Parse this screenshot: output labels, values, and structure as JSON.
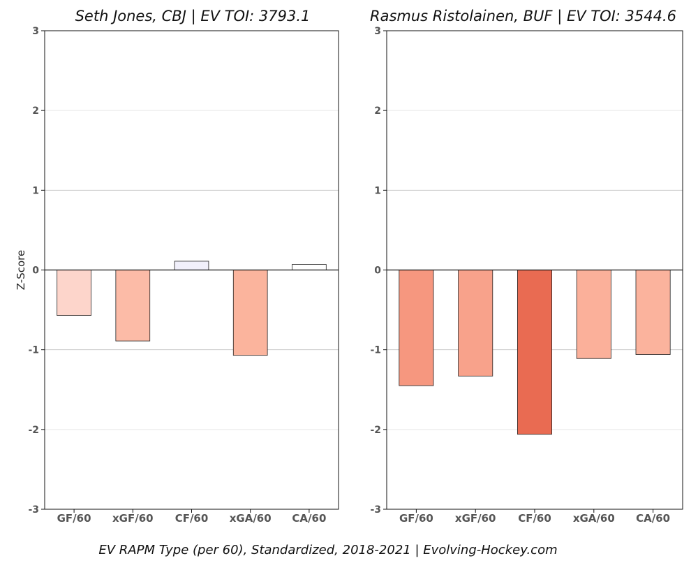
{
  "footer": "EV RAPM Type (per 60), Standardized, 2018-2021    |    Evolving-Hockey.com",
  "chart_data": [
    {
      "type": "bar",
      "title": "Seth Jones, CBJ  |  EV TOI: 3793.1",
      "ylabel": "Z-Score",
      "ylim": [
        -3,
        3
      ],
      "yticks": [
        -3,
        -2,
        -1,
        0,
        1,
        2,
        3
      ],
      "grid": true,
      "categories": [
        "GF/60",
        "xGF/60",
        "CF/60",
        "xGA/60",
        "CA/60"
      ],
      "values": [
        -0.57,
        -0.89,
        0.11,
        -1.07,
        0.07
      ],
      "colors": [
        "#fdd5cb",
        "#fcbba7",
        "#f1f0fb",
        "#fbb49d",
        "#ffffff"
      ]
    },
    {
      "type": "bar",
      "title": "Rasmus Ristolainen, BUF  |  EV TOI: 3544.6",
      "ylabel": "",
      "ylim": [
        -3,
        3
      ],
      "yticks": [
        -3,
        -2,
        -1,
        0,
        1,
        2,
        3
      ],
      "grid": true,
      "categories": [
        "GF/60",
        "xGF/60",
        "CF/60",
        "xGA/60",
        "CA/60"
      ],
      "values": [
        -1.45,
        -1.33,
        -2.06,
        -1.11,
        -1.06
      ],
      "colors": [
        "#f6977f",
        "#f8a28b",
        "#e96b52",
        "#fbb09a",
        "#fbb39d"
      ]
    }
  ]
}
